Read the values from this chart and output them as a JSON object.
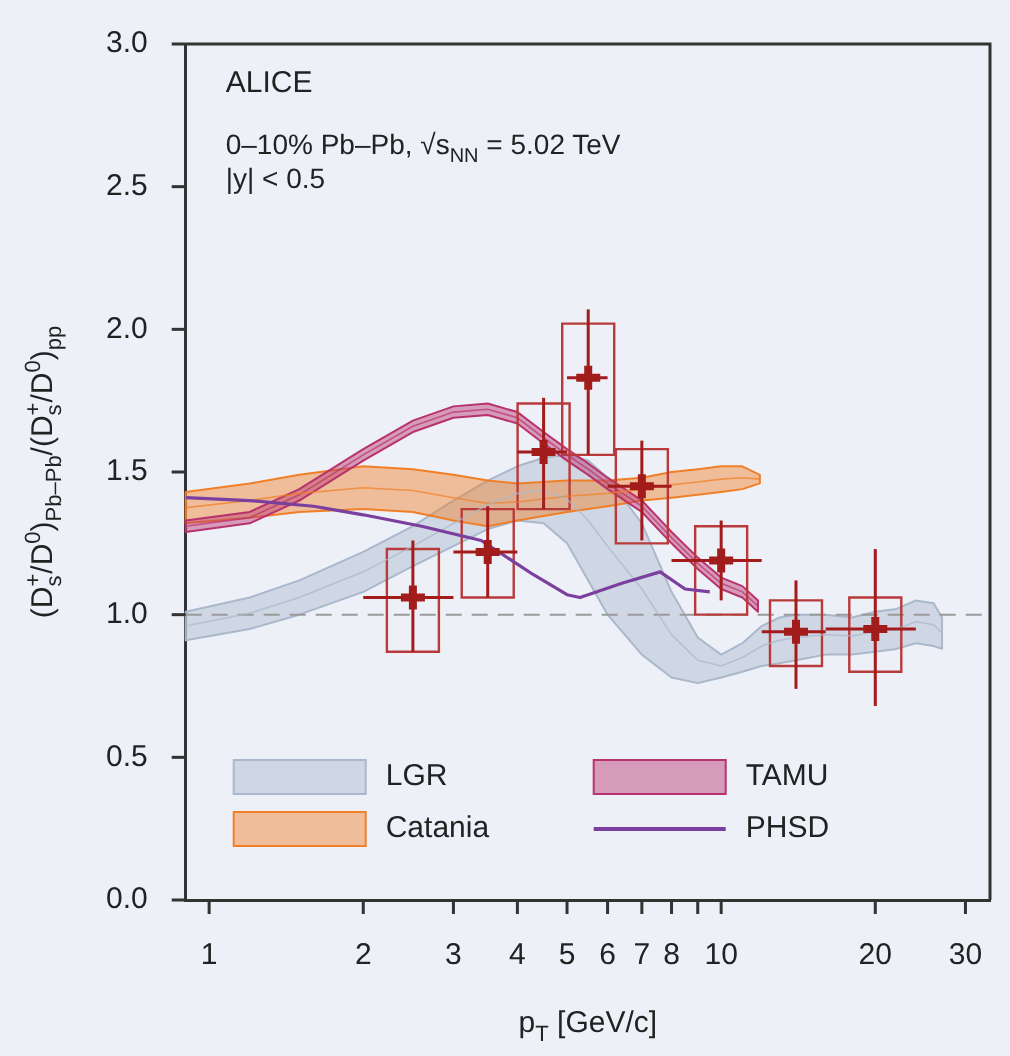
{
  "chart_data": {
    "type": "line",
    "xlabel": "p$_{T}$ [GeV/c]",
    "ylabel": "(D$_{s}$$^{+}$/D$^{0}$)$_{Pb–Pb}$/(D$_{s}$$^{+}$/D$^{0}$)$_{pp}$",
    "annotations": [
      "ALICE",
      "0–10% Pb–Pb, √s$_{NN}$ = 5.02 TeV",
      "|y| < 0.5"
    ],
    "log": "x",
    "xlim": [
      0.9,
      33.5
    ],
    "xticks": [
      1,
      2,
      3,
      4,
      5,
      6,
      7,
      8,
      {
        "value": 9,
        "label": null
      },
      10,
      20,
      30
    ],
    "ylim": [
      0,
      3
    ],
    "yticks": [
      {
        "value": 0,
        "label": "0.0"
      },
      {
        "value": 0.5,
        "label": "0.5"
      },
      {
        "value": 1,
        "label": "1.0"
      },
      {
        "value": 1.5,
        "label": "1.5"
      },
      {
        "value": 2,
        "label": "2.0"
      },
      {
        "value": 2.5,
        "label": "2.5"
      },
      {
        "value": 3,
        "label": "3.0"
      }
    ],
    "grid": false,
    "legend": "bottom left",
    "ref_lines": [
      {
        "axis": "y",
        "value": 1,
        "color": "#9a9a9a",
        "line_style": "dashed"
      }
    ],
    "series": [
      {
        "name": "LGR",
        "color": "#a9b8cb",
        "x": [
          0.9,
          1.2,
          1.5,
          2,
          2.5,
          3,
          3.5,
          4,
          4.5,
          5,
          5.5,
          6,
          7,
          8,
          9,
          10,
          11,
          12,
          13,
          14,
          16,
          18,
          20,
          22,
          24,
          26,
          27
        ],
        "values": [
          0.96,
          1.005,
          1.06,
          1.15,
          1.24,
          1.32,
          1.385,
          1.425,
          1.435,
          1.405,
          1.33,
          1.24,
          1.09,
          0.93,
          0.84,
          0.82,
          0.85,
          0.89,
          0.91,
          0.92,
          0.93,
          0.925,
          0.94,
          0.95,
          0.975,
          0.965,
          0.935
        ],
        "lower": [
          0.91,
          0.95,
          1.0,
          1.08,
          1.17,
          1.24,
          1.3,
          1.33,
          1.32,
          1.25,
          1.12,
          1.0,
          0.86,
          0.78,
          0.76,
          0.78,
          0.8,
          0.82,
          0.83,
          0.84,
          0.86,
          0.86,
          0.87,
          0.88,
          0.9,
          0.89,
          0.88
        ],
        "upper": [
          1.01,
          1.06,
          1.12,
          1.22,
          1.31,
          1.4,
          1.47,
          1.52,
          1.55,
          1.56,
          1.54,
          1.48,
          1.32,
          1.08,
          0.92,
          0.86,
          0.9,
          0.96,
          0.99,
          1.0,
          1.0,
          0.99,
          1.01,
          1.02,
          1.05,
          1.04,
          0.99
        ]
      },
      {
        "name": "Catania",
        "color": "#f07f27",
        "x": [
          0.9,
          1.2,
          1.5,
          2,
          2.5,
          3,
          3.5,
          4,
          5,
          6,
          7,
          8,
          9,
          10,
          11,
          11.9
        ],
        "values": [
          1.375,
          1.4,
          1.425,
          1.445,
          1.435,
          1.41,
          1.39,
          1.395,
          1.415,
          1.425,
          1.44,
          1.455,
          1.465,
          1.475,
          1.48,
          1.475
        ],
        "lower": [
          1.32,
          1.34,
          1.36,
          1.37,
          1.36,
          1.33,
          1.31,
          1.33,
          1.36,
          1.38,
          1.4,
          1.41,
          1.42,
          1.43,
          1.44,
          1.46
        ],
        "upper": [
          1.43,
          1.46,
          1.49,
          1.52,
          1.51,
          1.49,
          1.47,
          1.46,
          1.47,
          1.47,
          1.48,
          1.5,
          1.51,
          1.52,
          1.52,
          1.49
        ]
      },
      {
        "name": "TAMU",
        "color": "#b8326e",
        "x": [
          0.9,
          1.2,
          1.5,
          2,
          2.5,
          3,
          3.5,
          4,
          4.5,
          5,
          5.5,
          6,
          7,
          8,
          9,
          10,
          11,
          11.8
        ],
        "values": [
          1.31,
          1.34,
          1.42,
          1.56,
          1.66,
          1.71,
          1.72,
          1.69,
          1.62,
          1.56,
          1.51,
          1.46,
          1.38,
          1.27,
          1.18,
          1.11,
          1.08,
          1.03
        ],
        "lower": [
          1.29,
          1.32,
          1.4,
          1.54,
          1.64,
          1.69,
          1.7,
          1.67,
          1.6,
          1.54,
          1.49,
          1.44,
          1.36,
          1.25,
          1.16,
          1.09,
          1.06,
          1.01
        ],
        "upper": [
          1.33,
          1.36,
          1.44,
          1.58,
          1.68,
          1.73,
          1.74,
          1.71,
          1.64,
          1.58,
          1.53,
          1.48,
          1.4,
          1.29,
          1.2,
          1.13,
          1.1,
          1.05
        ]
      },
      {
        "name": "PHSD",
        "color": "#7b3f9e",
        "x": [
          0.9,
          1.2,
          1.6,
          2,
          2.6,
          3.4,
          4.3,
          5.0,
          5.3,
          6.4,
          7.6,
          8.5,
          9.5
        ],
        "values": [
          1.41,
          1.4,
          1.38,
          1.35,
          1.31,
          1.26,
          1.14,
          1.07,
          1.06,
          1.11,
          1.15,
          1.09,
          1.08
        ]
      },
      {
        "type": "bar",
        "color": "#b83a3a",
        "x": [
          2.5,
          3.5,
          4.5,
          5.5,
          7,
          10,
          14,
          20
        ],
        "base": [
          0.87,
          1.06,
          1.37,
          1.56,
          1.25,
          1.0,
          0.82,
          0.8
        ],
        "values": [
          0.36,
          0.31,
          0.37,
          0.46,
          0.33,
          0.31,
          0.23,
          0.26
        ]
      },
      {
        "type": "scatter",
        "color": "#a31c1c",
        "marker": "cross",
        "x": [
          2.5,
          3.5,
          4.5,
          5.5,
          7,
          10,
          14,
          20
        ],
        "values": [
          1.06,
          1.22,
          1.57,
          1.83,
          1.45,
          1.19,
          0.94,
          0.95
        ],
        "errors": [
          [
            0.87,
            1.26
          ],
          [
            1.06,
            1.38
          ],
          [
            1.37,
            1.76
          ],
          [
            1.56,
            2.07
          ],
          [
            1.26,
            1.61
          ],
          [
            1.05,
            1.33
          ],
          [
            0.74,
            1.12
          ],
          [
            0.68,
            1.23
          ]
        ],
        "xerrors": [
          [
            2,
            3
          ],
          [
            3,
            4
          ],
          [
            4,
            5
          ],
          [
            5,
            6
          ],
          [
            6,
            8
          ],
          [
            8,
            12
          ],
          [
            12,
            16
          ],
          [
            16,
            24
          ]
        ]
      }
    ]
  }
}
